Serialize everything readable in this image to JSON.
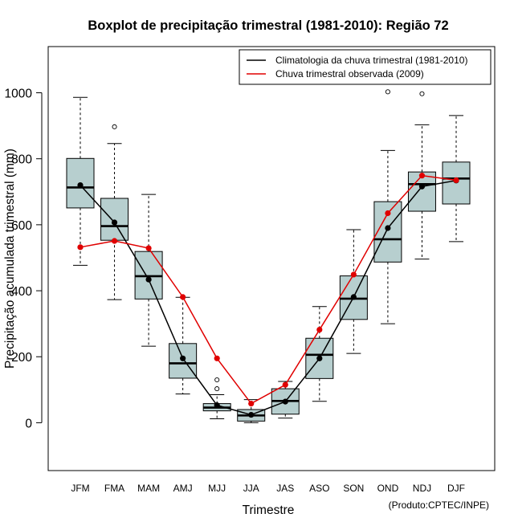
{
  "chart_data": {
    "type": "boxplot",
    "title": "Boxplot de precipitação trimestral (1981-2010): Região 72",
    "xlabel": "Trimestre",
    "ylabel": "Precipitação acumulada trimestral (mm)",
    "ylim": [
      -145,
      1140
    ],
    "yticks": [
      0,
      200,
      400,
      600,
      800,
      1000
    ],
    "categories": [
      "JFM",
      "FMA",
      "MAM",
      "AMJ",
      "MJJ",
      "JJA",
      "JAS",
      "ASO",
      "SON",
      "OND",
      "NDJ",
      "DJF"
    ],
    "boxes": [
      {
        "whisker_low": 477,
        "q1": 651,
        "median": 713,
        "q3": 801,
        "whisker_high": 986,
        "outliers": []
      },
      {
        "whisker_low": 373,
        "q1": 553,
        "median": 596,
        "q3": 680,
        "whisker_high": 846,
        "outliers": [
          897
        ]
      },
      {
        "whisker_low": 232,
        "q1": 375,
        "median": 444,
        "q3": 519,
        "whisker_high": 692,
        "outliers": []
      },
      {
        "whisker_low": 87,
        "q1": 135,
        "median": 180,
        "q3": 240,
        "whisker_high": 380,
        "outliers": []
      },
      {
        "whisker_low": 12,
        "q1": 36,
        "median": 46,
        "q3": 58,
        "whisker_high": 85,
        "outliers": [
          103,
          130
        ]
      },
      {
        "whisker_low": 0,
        "q1": 5,
        "median": 22,
        "q3": 40,
        "whisker_high": 70,
        "outliers": []
      },
      {
        "whisker_low": 14,
        "q1": 26,
        "median": 66,
        "q3": 103,
        "whisker_high": 125,
        "outliers": []
      },
      {
        "whisker_low": 65,
        "q1": 134,
        "median": 206,
        "q3": 256,
        "whisker_high": 352,
        "outliers": []
      },
      {
        "whisker_low": 210,
        "q1": 313,
        "median": 376,
        "q3": 445,
        "whisker_high": 585,
        "outliers": []
      },
      {
        "whisker_low": 300,
        "q1": 487,
        "median": 556,
        "q3": 670,
        "whisker_high": 825,
        "outliers": [
          1003
        ]
      },
      {
        "whisker_low": 496,
        "q1": 641,
        "median": 723,
        "q3": 760,
        "whisker_high": 903,
        "outliers": [
          997
        ]
      },
      {
        "whisker_low": 549,
        "q1": 663,
        "median": 740,
        "q3": 790,
        "whisker_high": 931,
        "outliers": []
      }
    ],
    "series": [
      {
        "name": "Climatologia da chuva trimestral (1981-2010)",
        "color": "#000000",
        "values": [
          720,
          607,
          434,
          195,
          53,
          24,
          64,
          195,
          381,
          590,
          716,
          734
        ]
      },
      {
        "name": "Chuva trimestral observada (2009)",
        "color": "#e00000",
        "values": [
          532,
          551,
          529,
          381,
          195,
          58,
          115,
          282,
          449,
          635,
          749,
          735
        ]
      }
    ],
    "box_fill": "#b7cfcf",
    "legend_position": "top-right"
  },
  "footer": "(Produto:CPTEC/INPE)"
}
